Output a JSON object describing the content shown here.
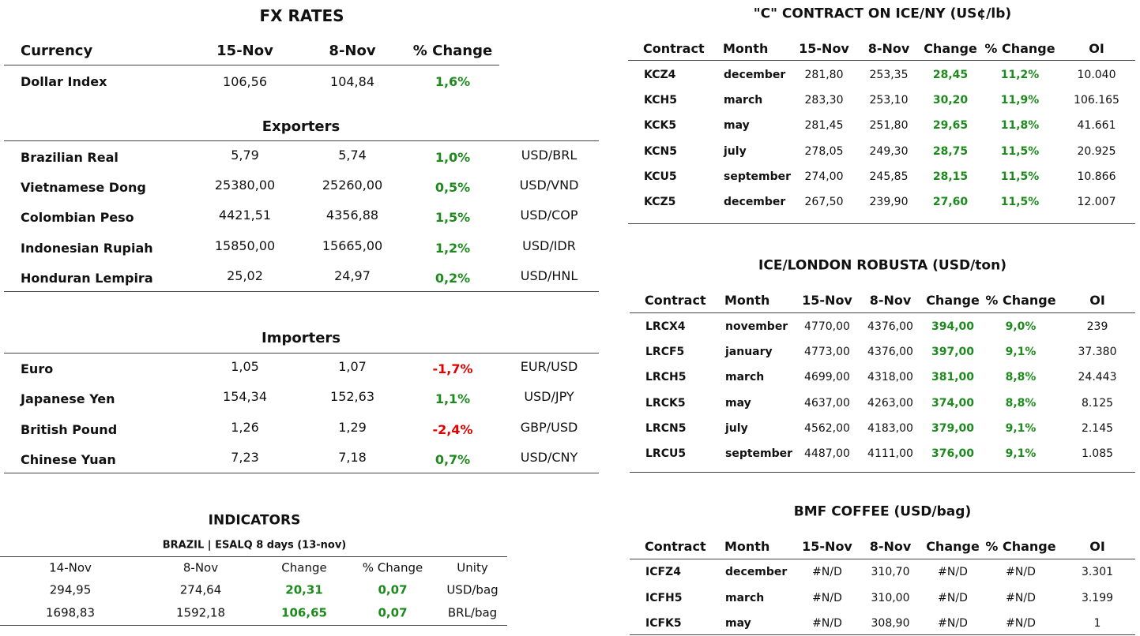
{
  "fx_rates": {
    "title": "FX RATES",
    "header": [
      "Currency",
      "15-Nov",
      "8-Nov",
      "% Change"
    ],
    "dollar_index": [
      "Dollar Index",
      "106,56",
      "104,84",
      "1,6%"
    ],
    "exporters": {
      "title": "Exporters",
      "rows": [
        [
          "Brazilian Real",
          "5,79",
          "5,74",
          "1,0%",
          "USD/BRL"
        ],
        [
          "Vietnamese Dong",
          "25380,00",
          "25260,00",
          "0,5%",
          "USD/VND"
        ],
        [
          "Colombian Peso",
          "4421,51",
          "4356,88",
          "1,5%",
          "USD/COP"
        ],
        [
          "Indonesian Rupiah",
          "15850,00",
          "15665,00",
          "1,2%",
          "USD/IDR"
        ],
        [
          "Honduran Lempira",
          "25,02",
          "24,97",
          "0,2%",
          "USD/HNL"
        ]
      ]
    },
    "importers": {
      "title": "Importers",
      "rows": [
        [
          "Euro",
          "1,05",
          "1,07",
          "-1,7%",
          "EUR/USD"
        ],
        [
          "Japanese Yen",
          "154,34",
          "152,63",
          "1,1%",
          "USD/JPY"
        ],
        [
          "British Pound",
          "1,26",
          "1,29",
          "-2,4%",
          "GBP/USD"
        ],
        [
          "Chinese Yuan",
          "7,23",
          "7,18",
          "0,7%",
          "USD/CNY"
        ]
      ]
    }
  },
  "indicators": {
    "title": "INDICATORS",
    "subtitle": "BRAZIL | ESALQ 8 days (13-nov)",
    "header": [
      "14-Nov",
      "8-Nov",
      "Change",
      "% Change",
      "Unity"
    ],
    "rows": [
      [
        "294,95",
        "274,64",
        "20,31",
        "0,07",
        "USD/bag"
      ],
      [
        "1698,83",
        "1592,18",
        "106,65",
        "0,07",
        "BRL/bag"
      ]
    ]
  },
  "contracts": [
    {
      "title": "\"C\" CONTRACT ON ICE/NY (US¢/lb)",
      "header": [
        "Contract",
        "Month",
        "15-Nov",
        "8-Nov",
        "Change",
        "% Change",
        "OI"
      ],
      "rows": [
        [
          "KCZ4",
          "december",
          "281,80",
          "253,35",
          "28,45",
          "11,2%",
          "10.040"
        ],
        [
          "KCH5",
          "march",
          "283,30",
          "253,10",
          "30,20",
          "11,9%",
          "106.165"
        ],
        [
          "KCK5",
          "may",
          "281,45",
          "251,80",
          "29,65",
          "11,8%",
          "41.661"
        ],
        [
          "KCN5",
          "july",
          "278,05",
          "249,30",
          "28,75",
          "11,5%",
          "20.925"
        ],
        [
          "KCU5",
          "september",
          "274,00",
          "245,85",
          "28,15",
          "11,5%",
          "10.866"
        ],
        [
          "KCZ5",
          "december",
          "267,50",
          "239,90",
          "27,60",
          "11,5%",
          "12.007"
        ]
      ]
    },
    {
      "title": "ICE/LONDON ROBUSTA (USD/ton)",
      "header": [
        "Contract",
        "Month",
        "15-Nov",
        "8-Nov",
        "Change",
        "% Change",
        "OI"
      ],
      "rows": [
        [
          "LRCX4",
          "november",
          "4770,00",
          "4376,00",
          "394,00",
          "9,0%",
          "239"
        ],
        [
          "LRCF5",
          "january",
          "4773,00",
          "4376,00",
          "397,00",
          "9,1%",
          "37.380"
        ],
        [
          "LRCH5",
          "march",
          "4699,00",
          "4318,00",
          "381,00",
          "8,8%",
          "24.443"
        ],
        [
          "LRCK5",
          "may",
          "4637,00",
          "4263,00",
          "374,00",
          "8,8%",
          "8.125"
        ],
        [
          "LRCN5",
          "july",
          "4562,00",
          "4183,00",
          "379,00",
          "9,1%",
          "2.145"
        ],
        [
          "LRCU5",
          "september",
          "4487,00",
          "4111,00",
          "376,00",
          "9,1%",
          "1.085"
        ]
      ]
    },
    {
      "title": "BMF COFFEE (USD/bag)",
      "header": [
        "Contract",
        "Month",
        "15-Nov",
        "8-Nov",
        "Change",
        "% Change",
        "OI"
      ],
      "rows": [
        [
          "ICFZ4",
          "december",
          "#N/D",
          "310,70",
          "#N/D",
          "#N/D",
          "3.301"
        ],
        [
          "ICFH5",
          "march",
          "#N/D",
          "310,00",
          "#N/D",
          "#N/D",
          "3.199"
        ],
        [
          "ICFK5",
          "may",
          "#N/D",
          "308,90",
          "#N/D",
          "#N/D",
          "1"
        ]
      ]
    }
  ]
}
